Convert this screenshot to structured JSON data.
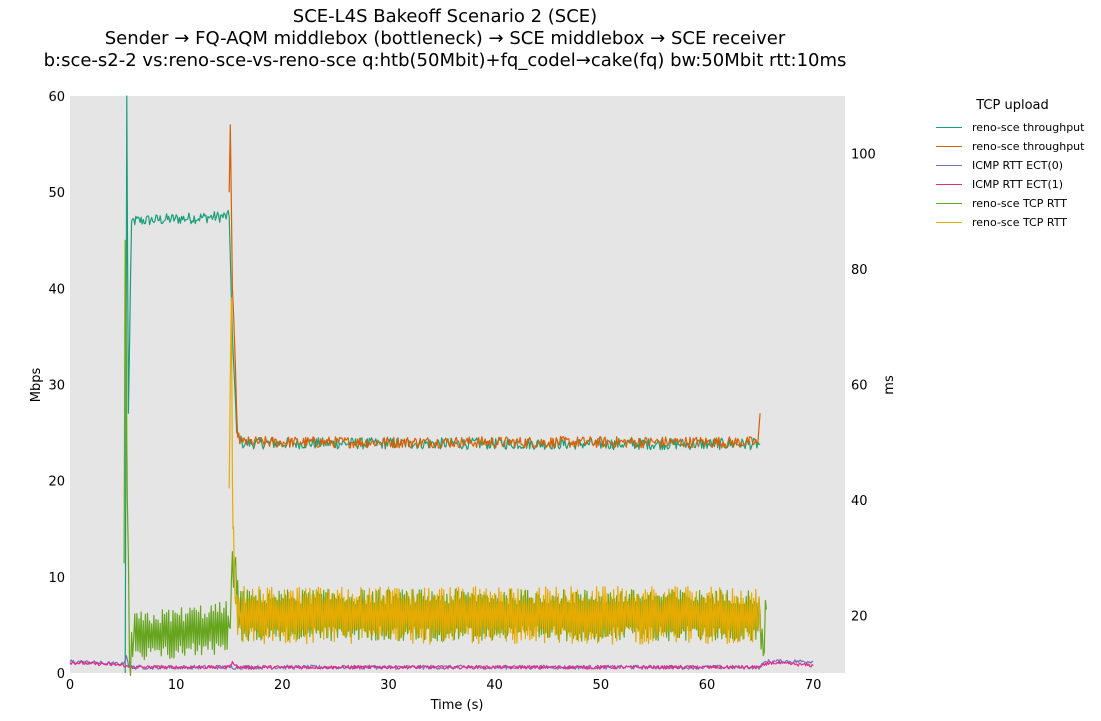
{
  "title": {
    "line1": "SCE-L4S Bakeoff Scenario 2 (SCE)",
    "line2": "Sender → FQ-AQM middlebox (bottleneck) → SCE middlebox → SCE receiver",
    "line3": "b:sce-s2-2 vs:reno-sce-vs-reno-sce q:htb(50Mbit)+fq_codel→cake(fq) bw:50Mbit rtt:10ms"
  },
  "legend": {
    "title": "TCP upload",
    "items": [
      {
        "label": "reno-sce throughput",
        "color": "#1b9e77"
      },
      {
        "label": "reno-sce throughput",
        "color": "#d95f02"
      },
      {
        "label": "ICMP RTT ECT(0)",
        "color": "#7570b3"
      },
      {
        "label": "ICMP RTT ECT(1)",
        "color": "#e7298a"
      },
      {
        "label": "reno-sce TCP RTT",
        "color": "#66a61e"
      },
      {
        "label": "reno-sce TCP RTT",
        "color": "#e6ab02"
      }
    ]
  },
  "chart_data": {
    "type": "line",
    "xlabel": "Time (s)",
    "ylabel_left": "Mbps",
    "ylabel_right": "ms",
    "xlim": [
      0,
      73
    ],
    "ylim_left": [
      0,
      60
    ],
    "ylim_right": [
      10,
      110
    ],
    "xticks": [
      0,
      10,
      20,
      30,
      40,
      50,
      60,
      70
    ],
    "yticks_left": [
      0,
      10,
      20,
      30,
      40,
      50,
      60
    ],
    "yticks_right": [
      20,
      40,
      60,
      80,
      100
    ],
    "grid": false,
    "legend_position": "outside-right",
    "series": [
      {
        "name": "reno-sce throughput",
        "axis": "left",
        "color": "#1b9e77",
        "base": [
          [
            5.2,
            0
          ],
          [
            5.35,
            60
          ],
          [
            5.5,
            27
          ],
          [
            5.8,
            47
          ],
          [
            15.0,
            47.5
          ],
          [
            15.3,
            35
          ],
          [
            15.7,
            25
          ],
          [
            16.2,
            23.9
          ],
          [
            65.0,
            23.8
          ]
        ],
        "noise": 0.6
      },
      {
        "name": "reno-sce throughput",
        "axis": "left",
        "color": "#d95f02",
        "base": [
          [
            15.0,
            50
          ],
          [
            15.1,
            57
          ],
          [
            15.3,
            40
          ],
          [
            15.8,
            24.5
          ],
          [
            16.3,
            24
          ],
          [
            64.5,
            24
          ],
          [
            64.8,
            24
          ],
          [
            65.0,
            27
          ]
        ],
        "noise": 0.6
      },
      {
        "name": "ICMP RTT ECT(0)",
        "axis": "right",
        "color": "#7570b3",
        "base": [
          [
            0,
            12.0
          ],
          [
            5.0,
            11.5
          ],
          [
            5.3,
            13
          ],
          [
            5.6,
            11.0
          ],
          [
            65.0,
            11.0
          ],
          [
            65.5,
            12.0
          ],
          [
            70,
            12.0
          ]
        ],
        "noise": 0.35
      },
      {
        "name": "ICMP RTT ECT(1)",
        "axis": "right",
        "color": "#e7298a",
        "base": [
          [
            0,
            11.8
          ],
          [
            5.0,
            11.4
          ],
          [
            5.5,
            11.0
          ],
          [
            15.0,
            11.0
          ],
          [
            15.3,
            12.0
          ],
          [
            15.8,
            11.0
          ],
          [
            65.0,
            11.0
          ],
          [
            66.0,
            11.8
          ],
          [
            70,
            11.3
          ]
        ],
        "noise": 0.3
      },
      {
        "name": "reno-sce TCP RTT",
        "axis": "right",
        "color": "#66a61e",
        "base": [
          [
            5.1,
            29
          ],
          [
            5.2,
            85
          ],
          [
            5.35,
            50
          ],
          [
            5.6,
            12
          ],
          [
            6,
            16
          ],
          [
            15.0,
            18
          ],
          [
            15.2,
            26
          ],
          [
            15.5,
            29
          ],
          [
            16,
            20
          ],
          [
            65.0,
            20
          ],
          [
            65.3,
            13
          ],
          [
            65.6,
            21
          ]
        ],
        "amp": 4.5
      },
      {
        "name": "reno-sce TCP RTT",
        "axis": "right",
        "color": "#e6ab02",
        "base": [
          [
            15.0,
            42
          ],
          [
            15.2,
            75
          ],
          [
            15.35,
            35
          ],
          [
            15.6,
            22
          ],
          [
            16,
            20
          ],
          [
            64.8,
            20
          ],
          [
            65.0,
            17
          ]
        ],
        "amp": 5.0
      }
    ]
  }
}
